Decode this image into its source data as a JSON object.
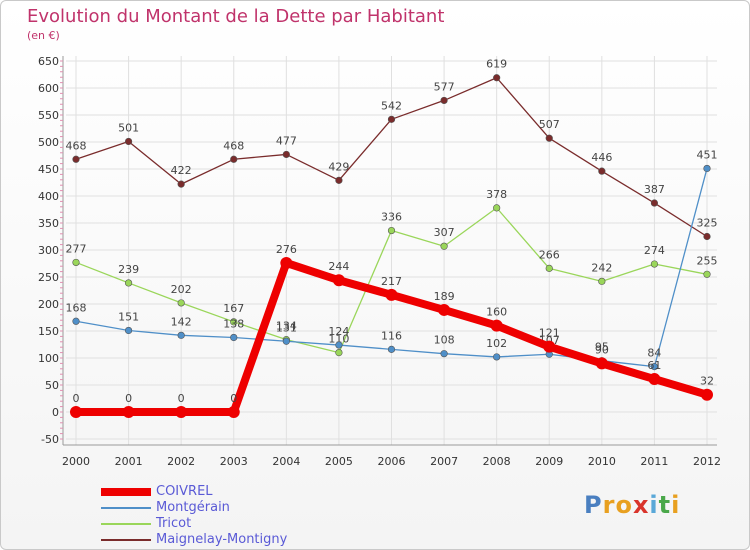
{
  "title": "Evolution du Montant de la Dette par Habitant",
  "unit": "(en €)",
  "logo_text": "Proxiti",
  "chart_data": {
    "type": "line",
    "x": [
      "2000",
      "2001",
      "2002",
      "2003",
      "2004",
      "2005",
      "2006",
      "2007",
      "2008",
      "2009",
      "2010",
      "2011",
      "2012"
    ],
    "ylim": [
      -50,
      650
    ],
    "yticks": [
      -50,
      0,
      50,
      100,
      150,
      200,
      250,
      300,
      350,
      400,
      450,
      500,
      550,
      600,
      650
    ],
    "grid": true,
    "legend_position": "bottom-left",
    "series": [
      {
        "name": "Maignelay-Montigny",
        "color": "#7a2c2c",
        "values": [
          468,
          501,
          422,
          468,
          477,
          429,
          542,
          577,
          619,
          507,
          446,
          387,
          325
        ]
      },
      {
        "name": "Tricot",
        "color": "#9ad65a",
        "values": [
          277,
          239,
          202,
          167,
          134,
          110,
          336,
          307,
          378,
          266,
          242,
          274,
          255
        ]
      },
      {
        "name": "Montgérain",
        "color": "#4f8fc8",
        "values": [
          168,
          151,
          142,
          138,
          131,
          124,
          116,
          108,
          102,
          107,
          95,
          84,
          451
        ]
      },
      {
        "name": "COIVREL",
        "color": "#ee0000",
        "values": [
          0,
          0,
          0,
          0,
          276,
          244,
          217,
          189,
          160,
          121,
          90,
          61,
          32
        ]
      }
    ]
  }
}
